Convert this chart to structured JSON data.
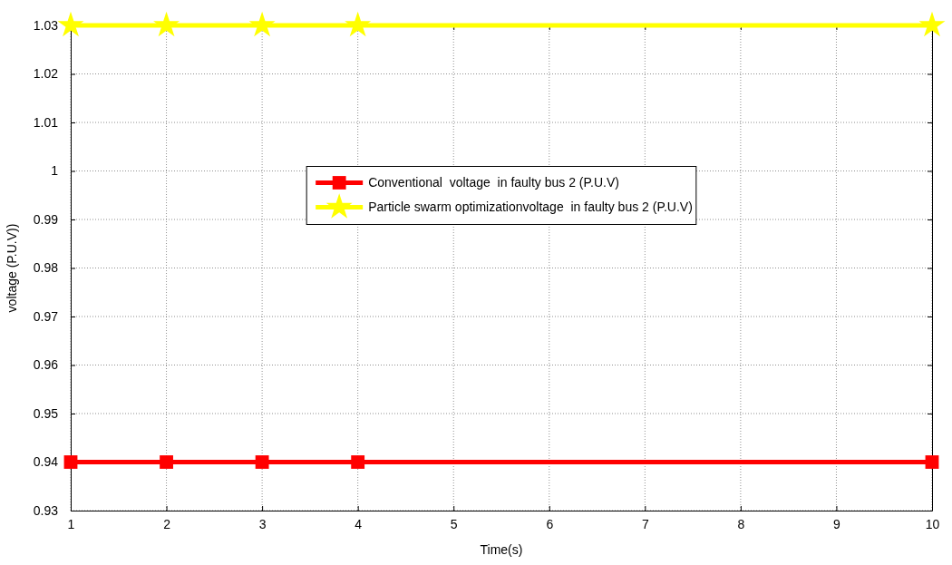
{
  "chart_data": {
    "type": "line",
    "xlabel": "Time(s)",
    "ylabel": "voltage (P.U.V))",
    "x": [
      1,
      2,
      3,
      4,
      10
    ],
    "series": [
      {
        "name": "Conventional  voltage  in faulty bus 2 (P.U.V)",
        "color": "#ff0000",
        "values": [
          0.94,
          0.94,
          0.94,
          0.94,
          0.94
        ],
        "marker": "square"
      },
      {
        "name": "Particle swarm optimizationvoltage  in faulty bus 2 (P.U.V)",
        "color": "#ffff00",
        "values": [
          1.03,
          1.03,
          1.03,
          1.03,
          1.03
        ],
        "marker": "star"
      }
    ],
    "xlim": [
      1,
      10
    ],
    "xticks": [
      1,
      2,
      3,
      4,
      5,
      6,
      7,
      8,
      9,
      10
    ],
    "ylim": [
      0.93,
      1.03
    ],
    "yticks": [
      0.93,
      0.94,
      0.95,
      0.96,
      0.97,
      0.98,
      0.99,
      1,
      1.01,
      1.02,
      1.03
    ],
    "grid": true,
    "legend": "center",
    "line_style": "solid"
  }
}
